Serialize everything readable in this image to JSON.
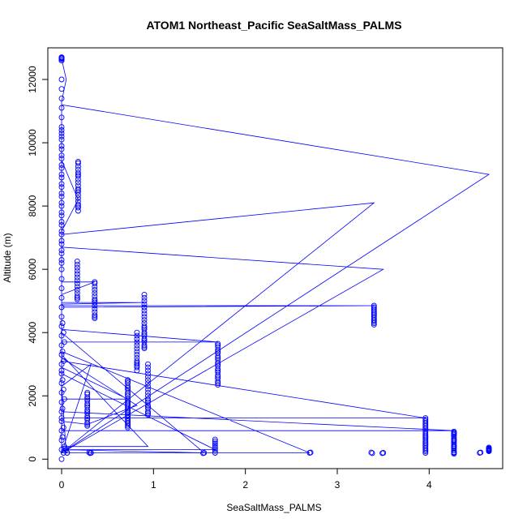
{
  "chart_data": {
    "type": "scatter",
    "title": "ATOM1 Northeast_Pacific SeaSaltMass_PALMS",
    "xlabel": "SeaSaltMass_PALMS",
    "ylabel": "Altitude (m)",
    "xlim": [
      -0.15,
      4.8
    ],
    "ylim": [
      -300,
      13000
    ],
    "xticks": [
      0,
      1,
      2,
      3,
      4
    ],
    "yticks": [
      0,
      2000,
      4000,
      6000,
      8000,
      10000,
      12000
    ],
    "grid": false,
    "legend": "none",
    "colors": {
      "series": "#0000ff"
    },
    "series": [
      {
        "x": [
          0,
          0,
          0,
          0,
          0,
          0,
          0,
          0,
          0,
          0,
          0,
          0,
          0,
          0,
          0,
          0,
          0,
          0,
          0,
          0,
          0,
          0,
          0,
          0,
          0,
          0,
          0,
          0,
          0,
          0,
          0,
          0,
          0,
          0,
          0,
          0,
          0,
          0,
          0,
          0,
          0,
          0,
          0,
          0,
          0,
          0,
          0,
          0,
          0,
          0,
          0,
          0,
          0,
          0,
          0,
          0,
          0,
          0,
          0,
          0,
          0.02,
          0.03,
          0.01,
          0.02,
          0,
          0.01,
          0.03,
          0.02,
          0.01,
          0,
          0.02,
          0.01,
          0.03,
          0.02,
          0.01,
          0.18,
          0.18,
          0.18,
          0.18,
          0.18,
          0.18,
          0.18,
          0.18,
          0.18,
          0.18,
          0.18,
          0.18,
          0.18,
          0.18,
          0.18,
          0.18,
          0.18,
          0.18,
          0.18,
          0.18,
          0.17,
          0.17,
          0.17,
          0.17,
          0.17,
          0.17,
          0.17,
          0.17,
          0.17,
          0.17,
          0.17,
          0.17,
          0.17,
          0.17,
          0.36,
          0.36,
          0.36,
          0.36,
          0.36,
          0.36,
          0.36,
          0.36,
          0.36,
          0.36,
          0.36,
          0.36,
          0.36,
          0.36,
          0.36,
          0.28,
          0.28,
          0.28,
          0.28,
          0.28,
          0.28,
          0.28,
          0.28,
          0.28,
          0.28,
          0.28,
          0.28,
          0.28,
          0.28,
          0.28,
          0.28,
          0.28,
          0.72,
          0.72,
          0.72,
          0.72,
          0.72,
          0.72,
          0.72,
          0.72,
          0.72,
          0.72,
          0.72,
          0.72,
          0.72,
          0.72,
          0.72,
          0.72,
          0.72,
          0.72,
          0.72,
          0.72,
          0.72,
          0.72,
          0.72,
          0.72,
          0.72,
          0.72,
          0.72,
          0.72,
          0.82,
          0.82,
          0.82,
          0.82,
          0.82,
          0.82,
          0.82,
          0.82,
          0.82,
          0.82,
          0.82,
          0.82,
          0.82,
          0.82,
          0.82,
          0.9,
          0.9,
          0.9,
          0.9,
          0.9,
          0.9,
          0.9,
          0.9,
          0.9,
          0.9,
          0.9,
          0.9,
          0.9,
          0.9,
          0.9,
          0.9,
          0.9,
          0.9,
          0.9,
          0.9,
          0.9,
          0.9,
          0.94,
          0.94,
          0.94,
          0.94,
          0.94,
          0.94,
          0.94,
          0.94,
          0.94,
          0.94,
          0.94,
          0.94,
          0.94,
          0.94,
          0.94,
          0.94,
          0.94,
          0.94,
          0.94,
          0.94,
          1.7,
          1.7,
          1.7,
          1.7,
          1.7,
          1.7,
          1.7,
          1.7,
          1.7,
          1.7,
          1.7,
          1.7,
          1.7,
          1.7,
          1.7,
          1.7,
          1.7,
          1.7,
          1.7,
          1.7,
          1.7,
          1.67,
          1.67,
          1.67,
          1.67,
          1.67,
          1.67,
          1.67,
          1.67,
          3.4,
          3.4,
          3.4,
          3.4,
          3.4,
          3.4,
          3.4,
          3.4,
          3.4,
          3.4,
          3.4,
          3.4,
          3.4,
          3.4,
          3.4,
          3.96,
          3.96,
          3.96,
          3.96,
          3.96,
          3.96,
          3.96,
          3.96,
          3.96,
          3.96,
          3.96,
          3.96,
          3.96,
          3.96,
          3.96,
          3.96,
          3.96,
          3.96,
          3.96,
          3.96,
          3.96,
          3.96,
          3.96,
          3.96,
          3.96,
          3.96,
          4.27,
          4.27,
          4.27,
          4.27,
          4.27,
          4.27,
          4.27,
          4.27,
          4.27,
          4.27,
          4.27,
          4.27,
          4.27,
          4.27,
          4.27,
          4.27,
          4.27,
          4.27,
          4.27,
          4.27,
          4.65,
          4.65,
          4.65,
          4.65,
          4.65,
          4.65,
          4.65,
          4.65,
          0.32,
          0.31,
          0.3,
          1.55,
          1.54,
          2.7,
          2.71,
          3.38,
          3.37,
          3.5,
          3.49,
          4.55,
          4.56,
          0.05,
          0.06,
          0,
          0,
          0,
          0
        ],
        "y": [
          0,
          300,
          600,
          900,
          1200,
          1500,
          1800,
          2100,
          2400,
          2700,
          3000,
          3300,
          3600,
          3900,
          4200,
          4500,
          4800,
          5100,
          5400,
          5700,
          6000,
          6300,
          6600,
          6900,
          7200,
          7500,
          7800,
          8100,
          8400,
          8700,
          9000,
          9300,
          9600,
          9900,
          10200,
          10500,
          10800,
          11100,
          11400,
          11700,
          12000,
          12600,
          12650,
          12700,
          10300,
          10400,
          10100,
          9800,
          9500,
          9200,
          8900,
          8600,
          8300,
          8000,
          7700,
          7400,
          7100,
          6800,
          6500,
          6200,
          200,
          400,
          700,
          1000,
          1300,
          1600,
          1900,
          2200,
          2500,
          2800,
          3100,
          3400,
          3700,
          4000,
          4300,
          7850,
          7950,
          8050,
          8150,
          8250,
          8350,
          8450,
          8550,
          8650,
          8750,
          8850,
          8950,
          9050,
          9150,
          9250,
          9350,
          8000,
          8500,
          9000,
          9400,
          5050,
          5150,
          5250,
          5350,
          5450,
          5550,
          5650,
          5750,
          5850,
          5950,
          6050,
          6150,
          6250,
          5100,
          4450,
          4550,
          4650,
          4750,
          4850,
          4950,
          5050,
          5150,
          5250,
          5350,
          5450,
          5550,
          5600,
          4500,
          5000,
          1050,
          1150,
          1250,
          1350,
          1450,
          1550,
          1650,
          1750,
          1850,
          1950,
          2050,
          1100,
          1300,
          1500,
          1700,
          1900,
          2100,
          1000,
          1100,
          1200,
          1300,
          1400,
          1500,
          1600,
          1700,
          1800,
          1900,
          2000,
          2100,
          2200,
          2300,
          2400,
          2500,
          1050,
          1250,
          1450,
          1650,
          1850,
          2050,
          2250,
          2450,
          1150,
          1350,
          1550,
          1750,
          2900,
          3000,
          3100,
          3200,
          3300,
          3400,
          3500,
          3600,
          3700,
          3800,
          3900,
          4000,
          2800,
          2950,
          3050,
          3500,
          3600,
          3700,
          3800,
          3900,
          4000,
          4100,
          4200,
          4300,
          4400,
          4500,
          4600,
          4700,
          4800,
          4900,
          5000,
          5100,
          5200,
          3550,
          3750,
          3950,
          4150,
          1400,
          1500,
          1600,
          1700,
          1800,
          1900,
          2000,
          2100,
          2200,
          2300,
          2400,
          2500,
          2600,
          2700,
          2800,
          2900,
          3000,
          1450,
          1650,
          1850,
          2350,
          2450,
          2550,
          2650,
          2750,
          2850,
          2950,
          3050,
          3150,
          3250,
          3350,
          3450,
          3550,
          3650,
          2400,
          2600,
          2800,
          3000,
          3200,
          3400,
          3600,
          200,
          260,
          320,
          380,
          440,
          500,
          560,
          620,
          4250,
          4300,
          4350,
          4400,
          4450,
          4500,
          4550,
          4600,
          4650,
          4700,
          4750,
          4800,
          4850,
          4400,
          4600,
          200,
          250,
          300,
          350,
          400,
          450,
          500,
          550,
          600,
          650,
          700,
          750,
          800,
          850,
          900,
          950,
          1000,
          1050,
          1100,
          1150,
          1200,
          1250,
          1300,
          300,
          500,
          700,
          170,
          220,
          270,
          320,
          370,
          420,
          470,
          520,
          570,
          620,
          670,
          720,
          770,
          820,
          870,
          200,
          400,
          600,
          800,
          850,
          250,
          280,
          310,
          340,
          370,
          260,
          290,
          320,
          200,
          190,
          210,
          200,
          190,
          200,
          210,
          190,
          210,
          200,
          190,
          200,
          210,
          300,
          200,
          12650,
          12700,
          12600,
          12680
        ]
      }
    ],
    "path": {
      "x": [
        0,
        0.05,
        0,
        0,
        0,
        0,
        0.18,
        0,
        0,
        0.36,
        0,
        0,
        0.9,
        0,
        0,
        3.4,
        0,
        0,
        1.7,
        0,
        0,
        0.28,
        0.82,
        0,
        0,
        3.96,
        0,
        0,
        4.27,
        0,
        0,
        0.72,
        0,
        0,
        1.55,
        0,
        0,
        2.7,
        0,
        0,
        3.4,
        0,
        0,
        4.65,
        0,
        0,
        0.94,
        0,
        0,
        1.67,
        0,
        0,
        3.5,
        0,
        0,
        0.32,
        0,
        0.05,
        0
      ],
      "y": [
        12650,
        12000,
        11300,
        10000,
        9450,
        9450,
        8200,
        7200,
        5600,
        5600,
        5200,
        4950,
        4950,
        4900,
        4850,
        4850,
        4800,
        3700,
        3700,
        4100,
        1200,
        1100,
        1700,
        3200,
        3100,
        1300,
        1300,
        900,
        900,
        1500,
        1900,
        1900,
        2900,
        4000,
        200,
        300,
        3400,
        200,
        200,
        7100,
        8100,
        200,
        200,
        9000,
        11200,
        400,
        400,
        3300,
        2700,
        300,
        300,
        6700,
        6000,
        200,
        200,
        3000,
        2300,
        200,
        200
      ]
    }
  }
}
